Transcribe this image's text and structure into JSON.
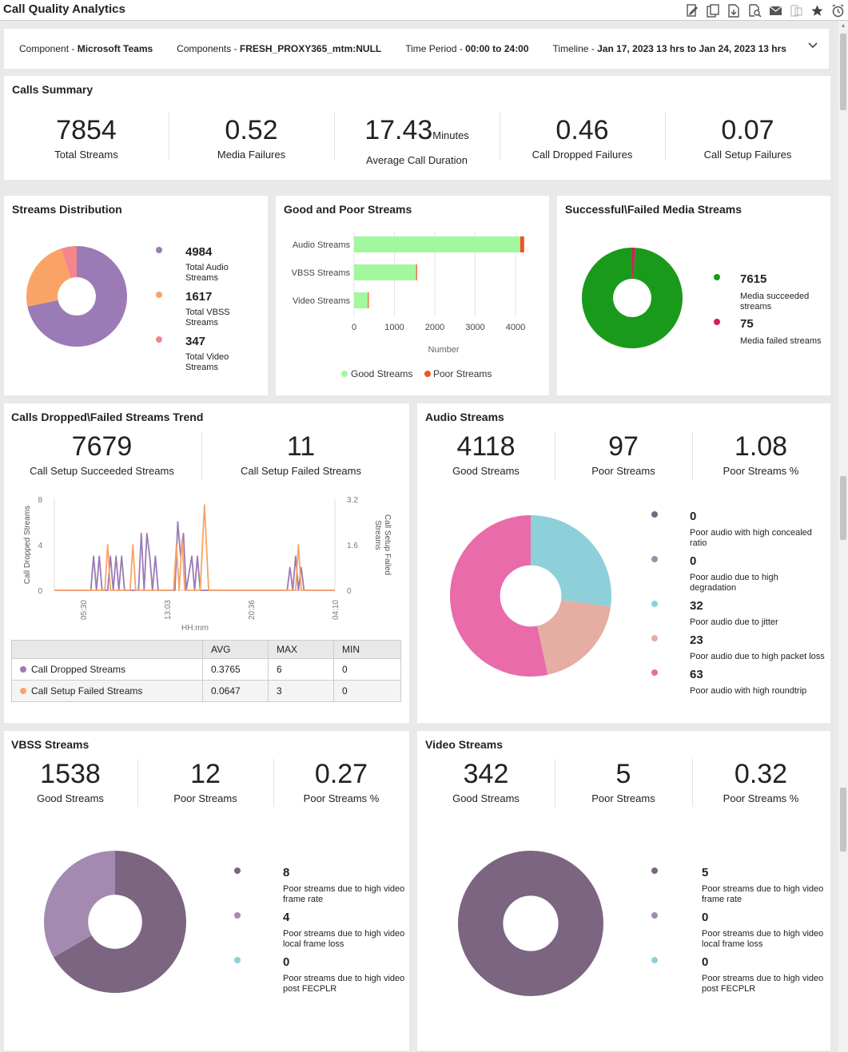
{
  "app": {
    "title": "Call Quality Analytics"
  },
  "toolbar": {
    "icons": [
      "edit-report-icon",
      "copy-report-icon",
      "export-pdf-icon",
      "preview-icon",
      "email-icon",
      "share-icon",
      "favorite-star-icon",
      "schedule-alarm-icon"
    ]
  },
  "filters": {
    "component_label": "Component - ",
    "component_value": "Microsoft Teams",
    "components_label": "Components - ",
    "components_value": "FRESH_PROXY365_mtm:NULL",
    "period_label": "Time Period - ",
    "period_value": "00:00 to 24:00",
    "timeline_label": "Timeline - ",
    "timeline_value": "Jan 17, 2023 13 hrs to Jan 24, 2023 13 hrs"
  },
  "calls_summary": {
    "title": "Calls Summary",
    "stats": [
      {
        "value": "7854",
        "label": "Total Streams",
        "unit": ""
      },
      {
        "value": "0.52",
        "label": "Media Failures",
        "unit": ""
      },
      {
        "value": "17.43",
        "label": "Average Call Duration",
        "unit": "Minutes"
      },
      {
        "value": "0.46",
        "label": "Call Dropped Failures",
        "unit": ""
      },
      {
        "value": "0.07",
        "label": "Call Setup Failures",
        "unit": ""
      }
    ]
  },
  "streams_distribution": {
    "title": "Streams Distribution",
    "items": [
      {
        "value": "4984",
        "label1": "Total Audio",
        "label2": "Streams",
        "color": "#9b7bb5"
      },
      {
        "value": "1617",
        "label1": "Total VBSS",
        "label2": "Streams",
        "color": "#f9a466"
      },
      {
        "value": "347",
        "label1": "Total Video",
        "label2": "Streams",
        "color": "#f4858d"
      }
    ]
  },
  "good_poor": {
    "title": "Good and Poor Streams",
    "xlabel": "Number",
    "ticks": [
      "0",
      "1000",
      "2000",
      "3000",
      "4000"
    ],
    "legend_good": "Good Streams",
    "legend_poor": "Poor Streams"
  },
  "media_streams": {
    "title": "Successful\\Failed Media Streams",
    "items": [
      {
        "value": "7615",
        "label1": "Media succeeded",
        "label2": "streams",
        "color": "#1a9a1a"
      },
      {
        "value": "75",
        "label1": "Media failed streams",
        "label2": "",
        "color": "#d81b60"
      }
    ]
  },
  "trend": {
    "title": "Calls Dropped\\Failed Streams Trend",
    "stats": [
      {
        "value": "7679",
        "label": "Call Setup Succeeded Streams"
      },
      {
        "value": "11",
        "label": "Call Setup Failed Streams"
      }
    ],
    "y_left_label": "Call Dropped Streams",
    "y_right_label_1": "Call Setup Failed",
    "y_right_label_2": "Streams",
    "x_label": "HH:mm",
    "y_left_ticks": [
      "8",
      "4",
      "0"
    ],
    "y_right_ticks": [
      "3.2",
      "1.6",
      "0"
    ],
    "x_ticks": [
      "05:30",
      "13:03",
      "20:36",
      "04:10"
    ],
    "table": {
      "headers": [
        "",
        "AVG",
        "MAX",
        "MIN"
      ],
      "rows": [
        {
          "name": "Call Dropped Streams",
          "avg": "0.3765",
          "max": "6",
          "min": "0",
          "color": "#9b7bb5"
        },
        {
          "name": "Call Setup Failed Streams",
          "avg": "0.0647",
          "max": "3",
          "min": "0",
          "color": "#f9a466"
        }
      ]
    }
  },
  "audio": {
    "title": "Audio Streams",
    "stats": [
      {
        "value": "4118",
        "label": "Good Streams"
      },
      {
        "value": "97",
        "label": "Poor Streams"
      },
      {
        "value": "1.08",
        "label": "Poor Streams %"
      }
    ],
    "items": [
      {
        "value": "0",
        "label1": "Poor audio with high concealed",
        "label2": "ratio",
        "color": "#7b6580"
      },
      {
        "value": "0",
        "label1": "Poor audio due to high",
        "label2": "degradation",
        "color": "#a48ab0"
      },
      {
        "value": "32",
        "label1": "Poor audio due to jitter",
        "label2": "",
        "color": "#8ed0da"
      },
      {
        "value": "23",
        "label1": "Poor audio due to high packet loss",
        "label2": "",
        "color": "#e6ada3"
      },
      {
        "value": "63",
        "label1": "Poor audio with high roundtrip",
        "label2": "",
        "color": "#e96ba9"
      }
    ]
  },
  "vbss": {
    "title": "VBSS Streams",
    "stats": [
      {
        "value": "1538",
        "label": "Good Streams"
      },
      {
        "value": "12",
        "label": "Poor Streams"
      },
      {
        "value": "0.27",
        "label": "Poor Streams %"
      }
    ],
    "items": [
      {
        "value": "8",
        "label1": "Poor streams due to high video",
        "label2": "frame rate",
        "color": "#7b6580"
      },
      {
        "value": "4",
        "label1": "Poor streams due to high video",
        "label2": "local frame loss",
        "color": "#a48ab0"
      },
      {
        "value": "0",
        "label1": "Poor streams due to high video",
        "label2": "post FECPLR",
        "color": "#8ed0da"
      }
    ]
  },
  "video": {
    "title": "Video Streams",
    "stats": [
      {
        "value": "342",
        "label": "Good Streams"
      },
      {
        "value": "5",
        "label": "Poor Streams"
      },
      {
        "value": "0.32",
        "label": "Poor Streams %"
      }
    ],
    "items": [
      {
        "value": "5",
        "label1": "Poor streams due to high video",
        "label2": "frame rate",
        "color": "#7b6580"
      },
      {
        "value": "0",
        "label1": "Poor streams due to high video",
        "label2": "local frame loss",
        "color": "#a48ab0"
      },
      {
        "value": "0",
        "label1": "Poor streams due to high video",
        "label2": "post FECPLR",
        "color": "#8ed0da"
      }
    ]
  },
  "chart_data": [
    {
      "type": "pie",
      "categories": [
        "Total Audio Streams",
        "Total VBSS Streams",
        "Total Video Streams"
      ],
      "values": [
        4984,
        1617,
        347
      ],
      "colors": [
        "#9b7bb5",
        "#f9a466",
        "#f4858d"
      ]
    },
    {
      "type": "bar",
      "categories": [
        "Audio Streams",
        "VBSS Streams",
        "Video Streams"
      ],
      "series": [
        {
          "name": "Good Streams",
          "values": [
            4118,
            1538,
            342
          ],
          "color": "#a3f79f"
        },
        {
          "name": "Poor Streams",
          "values": [
            97,
            12,
            5
          ],
          "color": "#f4511e"
        }
      ],
      "xlabel": "Number",
      "xlim": [
        0,
        4200
      ],
      "legend": "bottom"
    },
    {
      "type": "pie",
      "categories": [
        "Media succeeded streams",
        "Media failed streams"
      ],
      "values": [
        7615,
        75
      ],
      "colors": [
        "#1a9a1a",
        "#d81b60"
      ]
    },
    {
      "type": "line",
      "x_ticks": [
        "05:30",
        "13:03",
        "20:36",
        "04:10"
      ],
      "series": [
        {
          "name": "Call Dropped Streams",
          "axis": "left",
          "color": "#9b7bb5",
          "points": [
            [
              0.13,
              0
            ],
            [
              0.14,
              3
            ],
            [
              0.15,
              0
            ],
            [
              0.16,
              3
            ],
            [
              0.17,
              0
            ],
            [
              0.19,
              0
            ],
            [
              0.2,
              3
            ],
            [
              0.21,
              0
            ],
            [
              0.22,
              3
            ],
            [
              0.23,
              0
            ],
            [
              0.24,
              3
            ],
            [
              0.25,
              0
            ],
            [
              0.3,
              0
            ],
            [
              0.31,
              5
            ],
            [
              0.32,
              0
            ],
            [
              0.33,
              5
            ],
            [
              0.34,
              3
            ],
            [
              0.35,
              0
            ],
            [
              0.36,
              3
            ],
            [
              0.37,
              0
            ],
            [
              0.43,
              0
            ],
            [
              0.44,
              6
            ],
            [
              0.45,
              3
            ],
            [
              0.46,
              5
            ],
            [
              0.47,
              0
            ],
            [
              0.49,
              3
            ],
            [
              0.5,
              0
            ],
            [
              0.51,
              3
            ],
            [
              0.52,
              0
            ],
            [
              0.83,
              0
            ],
            [
              0.84,
              2
            ],
            [
              0.85,
              0
            ],
            [
              0.86,
              3
            ],
            [
              0.87,
              0
            ],
            [
              0.88,
              2
            ],
            [
              0.89,
              0
            ]
          ]
        },
        {
          "name": "Call Setup Failed Streams",
          "axis": "right",
          "color": "#f9a466",
          "points": [
            [
              0.18,
              0
            ],
            [
              0.19,
              1.6
            ],
            [
              0.2,
              0
            ],
            [
              0.27,
              0
            ],
            [
              0.28,
              1.6
            ],
            [
              0.29,
              0
            ],
            [
              0.425,
              0
            ],
            [
              0.435,
              1.6
            ],
            [
              0.445,
              0
            ],
            [
              0.455,
              1.8
            ],
            [
              0.465,
              0
            ],
            [
              0.52,
              0
            ],
            [
              0.535,
              3.0
            ],
            [
              0.55,
              0
            ],
            [
              0.86,
              0
            ],
            [
              0.87,
              1.6
            ],
            [
              0.88,
              0
            ]
          ]
        }
      ],
      "y_left_range": [
        0,
        8
      ],
      "y_right_range": [
        0,
        3.2
      ]
    },
    {
      "type": "pie",
      "categories": [
        "Poor audio with high concealed ratio",
        "Poor audio due to high degradation",
        "Poor audio due to jitter",
        "Poor audio due to high packet loss",
        "Poor audio with high roundtrip"
      ],
      "values": [
        0,
        0,
        32,
        23,
        63
      ],
      "colors": [
        "#7b6580",
        "#a48ab0",
        "#8ed0da",
        "#e6ada3",
        "#e96ba9"
      ]
    },
    {
      "type": "pie",
      "categories": [
        "Poor streams due to high video frame rate",
        "Poor streams due to high video local frame loss",
        "Poor streams due to high video post FECPLR"
      ],
      "values": [
        8,
        4,
        0
      ],
      "colors": [
        "#7b6580",
        "#a48ab0",
        "#8ed0da"
      ]
    },
    {
      "type": "pie",
      "categories": [
        "Poor streams due to high video frame rate",
        "Poor streams due to high video local frame loss",
        "Poor streams due to high video post FECPLR"
      ],
      "values": [
        5,
        0,
        0
      ],
      "colors": [
        "#7b6580",
        "#a48ab0",
        "#8ed0da"
      ]
    }
  ]
}
